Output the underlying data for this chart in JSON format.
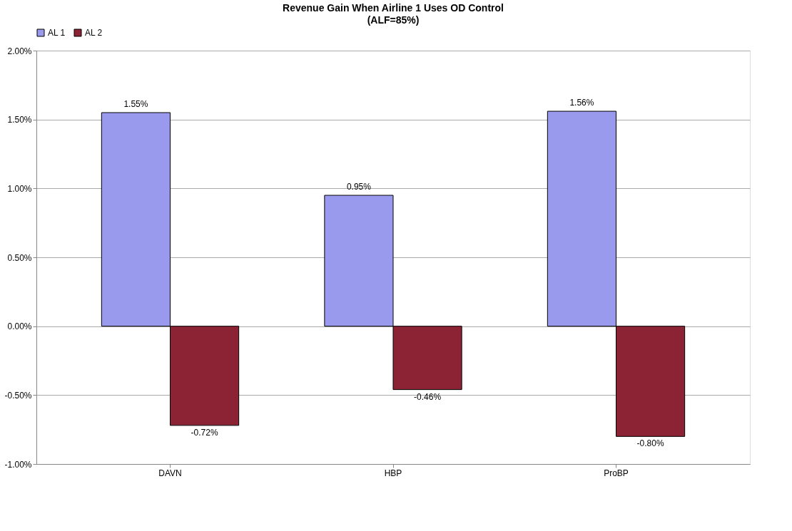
{
  "chart_data": {
    "type": "bar",
    "title": "Revenue Gain When Airline 1 Uses OD Control",
    "subtitle": "(ALF=85%)",
    "categories": [
      "DAVN",
      "HBP",
      "ProBP"
    ],
    "series": [
      {
        "name": "AL 1",
        "color": "#9999ee",
        "values": [
          1.55,
          0.95,
          1.56
        ],
        "value_labels": [
          "1.55%",
          "0.95%",
          "1.56%"
        ]
      },
      {
        "name": "AL 2",
        "color": "#8b2335",
        "values": [
          -0.72,
          -0.46,
          -0.8
        ],
        "value_labels": [
          "-0.72%",
          "-0.46%",
          "-0.80%"
        ]
      }
    ],
    "ylim": [
      -1,
      2
    ],
    "yticks": [
      {
        "value": -1,
        "label": "-1.00%"
      },
      {
        "value": -0.5,
        "label": "-0.50%"
      },
      {
        "value": 0,
        "label": "0.00%"
      },
      {
        "value": 0.5,
        "label": "0.50%"
      },
      {
        "value": 1,
        "label": "1.00%"
      },
      {
        "value": 1.5,
        "label": "1.50%"
      },
      {
        "value": 2,
        "label": "2.00%"
      }
    ],
    "grid": "y",
    "legend": "top"
  }
}
